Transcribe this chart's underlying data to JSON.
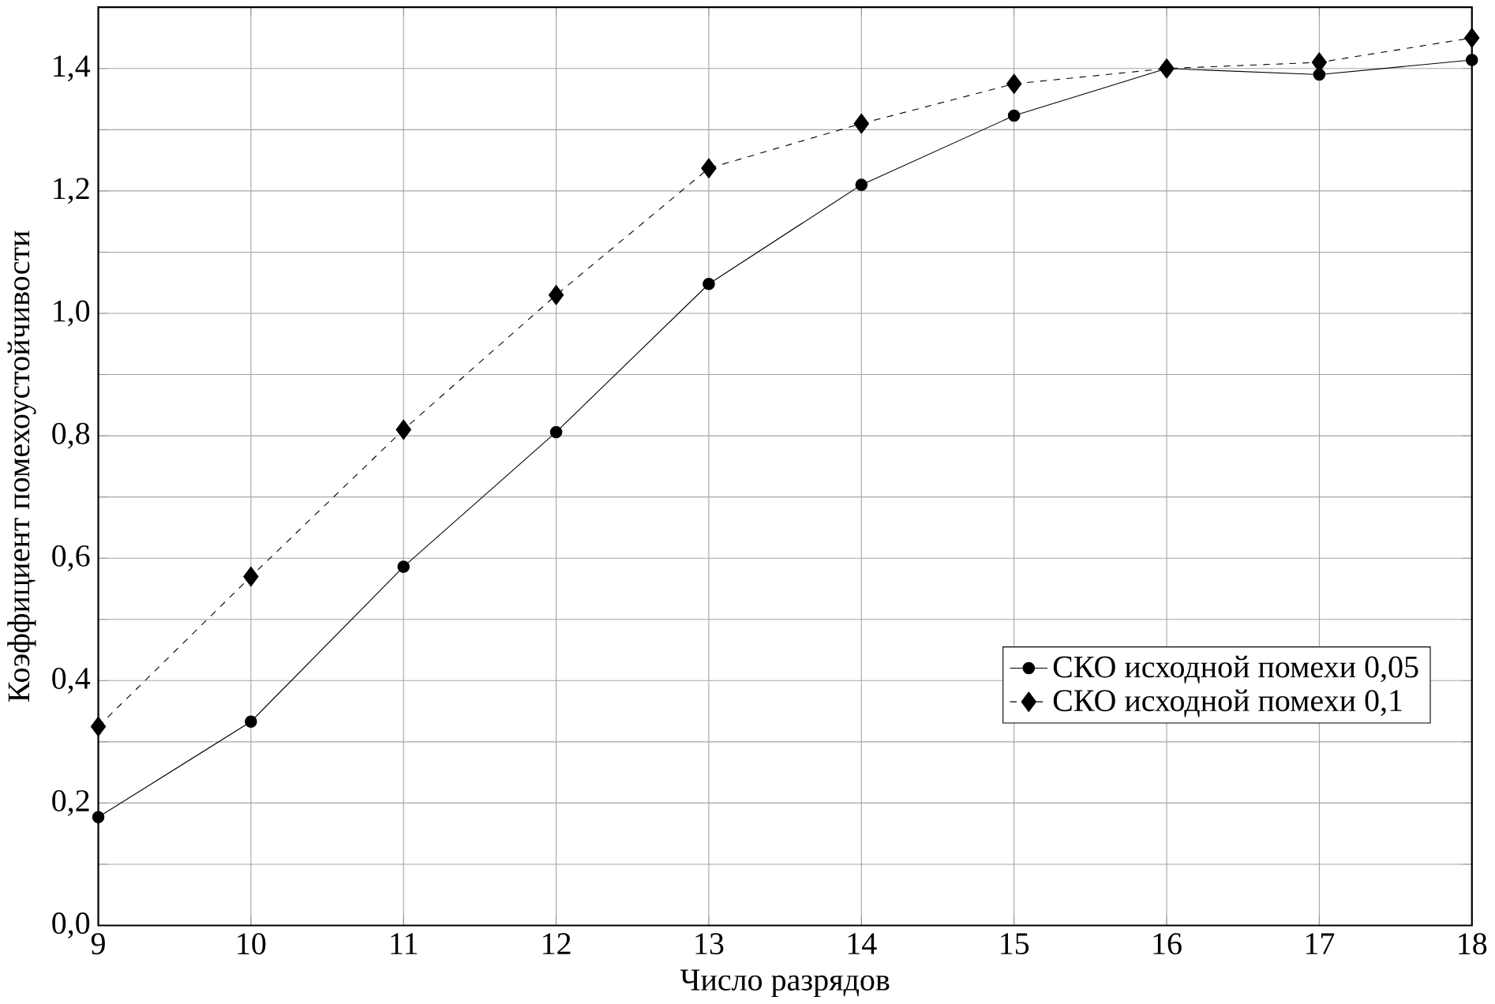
{
  "chart_data": {
    "type": "line",
    "xlabel": "Число разрядов",
    "ylabel": "Коэффициент помехоустойчивости",
    "x": [
      9,
      10,
      11,
      12,
      13,
      14,
      15,
      16,
      17,
      18
    ],
    "series": [
      {
        "name": "СКО исходной помехи 0,05",
        "color": "#000000",
        "marker": "circle",
        "line_style": "solid",
        "values": [
          0.177,
          0.333,
          0.586,
          0.806,
          1.048,
          1.21,
          1.323,
          1.4,
          1.39,
          1.414
        ]
      },
      {
        "name": "СКО исходной помехи 0,1",
        "color": "#000000",
        "marker": "diamond",
        "line_style": "dashed",
        "values": [
          0.325,
          0.57,
          0.81,
          1.03,
          1.237,
          1.31,
          1.375,
          1.4,
          1.41,
          1.45
        ]
      }
    ],
    "xlim": [
      9,
      18
    ],
    "ylim": [
      0,
      1.5
    ],
    "xticks": [
      9,
      10,
      11,
      12,
      13,
      14,
      15,
      16,
      17,
      18
    ],
    "yticks": [
      {
        "value": 0,
        "label": "0,0"
      },
      {
        "value": 0.1,
        "label": null
      },
      {
        "value": 0.2,
        "label": "0,2"
      },
      {
        "value": 0.3,
        "label": null
      },
      {
        "value": 0.4,
        "label": "0,4"
      },
      {
        "value": 0.5,
        "label": null
      },
      {
        "value": 0.6,
        "label": "0,6"
      },
      {
        "value": 0.7,
        "label": null
      },
      {
        "value": 0.8,
        "label": "0,8"
      },
      {
        "value": 0.9,
        "label": null
      },
      {
        "value": 1.0,
        "label": "1,0"
      },
      {
        "value": 1.1,
        "label": null
      },
      {
        "value": 1.2,
        "label": "1,2"
      },
      {
        "value": 1.3,
        "label": null
      },
      {
        "value": 1.4,
        "label": "1,4"
      },
      {
        "value": 1.5,
        "label": null
      }
    ],
    "grid": true,
    "legend": "bottom right"
  }
}
